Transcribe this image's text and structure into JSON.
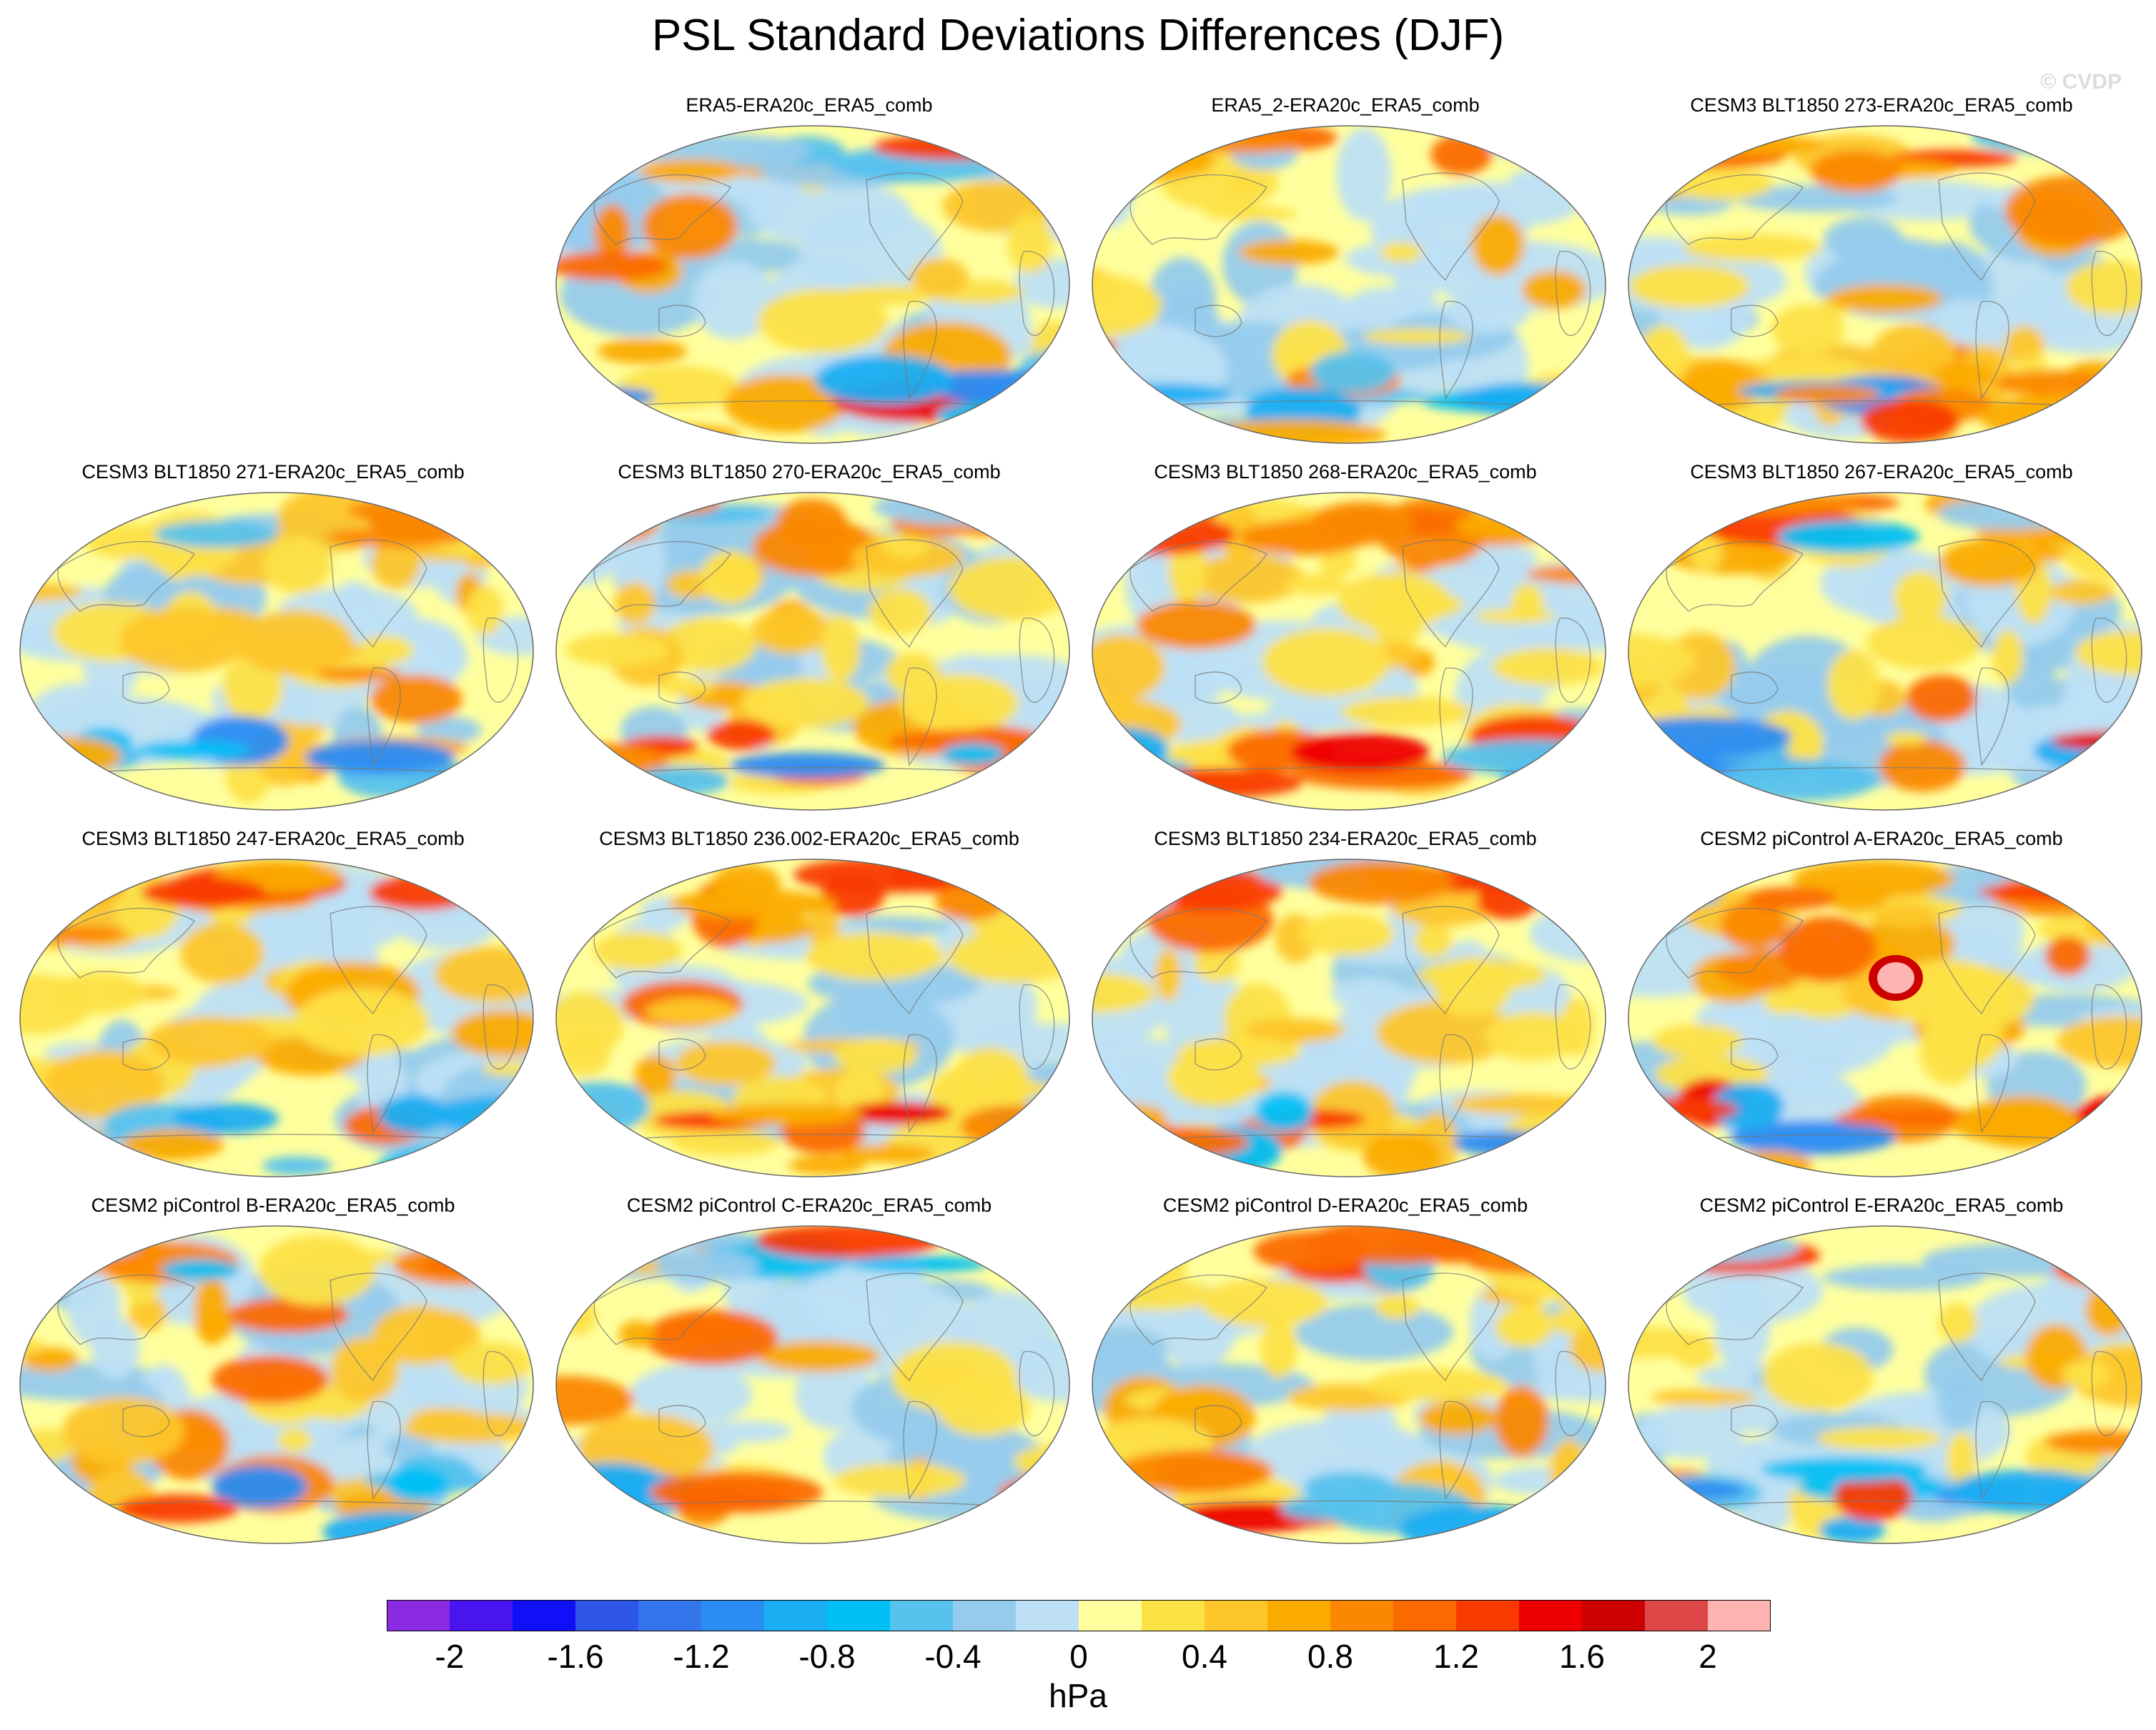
{
  "title": "PSL Standard Deviations Differences (DJF)",
  "watermark": "© CVDP",
  "chart_data": {
    "type": "heatmap",
    "projection": "Robinson (global, Pacific-centered)",
    "variable": "PSL",
    "season": "DJF",
    "units": "hPa",
    "panels": [
      {
        "label": "ERA5-ERA20c_ERA5_comb",
        "pattern": "blue"
      },
      {
        "label": "ERA5_2-ERA20c_ERA5_comb",
        "pattern": "blue"
      },
      {
        "label": "CESM3 BLT1850 273-ERA20c_ERA5_comb",
        "pattern": "warm"
      },
      {
        "label": "CESM3 BLT1850 271-ERA20c_ERA5_comb",
        "pattern": "mixed"
      },
      {
        "label": "CESM3 BLT1850 270-ERA20c_ERA5_comb",
        "pattern": "warm"
      },
      {
        "label": "CESM3 BLT1850 268-ERA20c_ERA5_comb",
        "pattern": "warm"
      },
      {
        "label": "CESM3 BLT1850 267-ERA20c_ERA5_comb",
        "pattern": "mixed"
      },
      {
        "label": "CESM3 BLT1850 247-ERA20c_ERA5_comb",
        "pattern": "mixed"
      },
      {
        "label": "CESM3 BLT1850 236.002-ERA20c_ERA5_comb",
        "pattern": "warm"
      },
      {
        "label": "CESM3 BLT1850 234-ERA20c_ERA5_comb",
        "pattern": "warm"
      },
      {
        "label": "CESM2 piControl A-ERA20c_ERA5_comb",
        "pattern": "hot"
      },
      {
        "label": "CESM2 piControl B-ERA20c_ERA5_comb",
        "pattern": "mixed"
      },
      {
        "label": "CESM2 piControl C-ERA20c_ERA5_comb",
        "pattern": "blue"
      },
      {
        "label": "CESM2 piControl D-ERA20c_ERA5_comb",
        "pattern": "mixed"
      },
      {
        "label": "CESM2 piControl E-ERA20c_ERA5_comb",
        "pattern": "blue"
      }
    ],
    "colorbar": {
      "label": "hPa",
      "levels": [
        -2.2,
        -2,
        -1.8,
        -1.6,
        -1.4,
        -1.2,
        -1,
        -0.8,
        -0.6,
        -0.4,
        -0.2,
        0,
        0.2,
        0.4,
        0.6,
        0.8,
        1,
        1.2,
        1.4,
        1.6,
        1.8,
        2,
        2.2
      ],
      "tick_labels": [
        "-2",
        "-1.6",
        "-1.2",
        "-0.8",
        "-0.4",
        "0",
        "0.4",
        "0.8",
        "1.2",
        "1.6",
        "2"
      ],
      "tick_values": [
        -2,
        -1.6,
        -1.2,
        -0.8,
        -0.4,
        0,
        0.4,
        0.8,
        1.2,
        1.6,
        2
      ],
      "colors": [
        "#8a2be2",
        "#4a14f0",
        "#1010f8",
        "#2e56e6",
        "#3575ec",
        "#2b8cf2",
        "#1aaef2",
        "#00c0f6",
        "#56c2ee",
        "#95cbed",
        "#bde0f6",
        "#ffff9e",
        "#fde246",
        "#fdc62a",
        "#fbab00",
        "#fb8800",
        "#fb6a00",
        "#f93b00",
        "#ee0000",
        "#cc0000",
        "#dd4747",
        "#ffb4b4"
      ]
    }
  }
}
